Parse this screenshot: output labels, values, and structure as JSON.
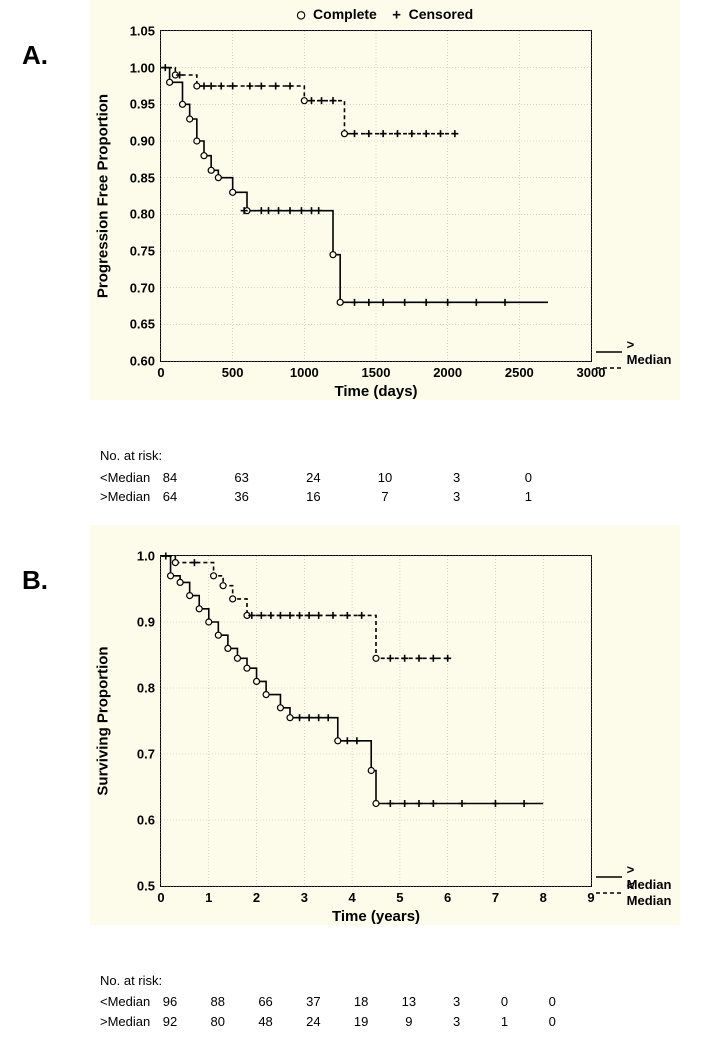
{
  "legend_markers": {
    "complete": "Complete",
    "censored": "Censored"
  },
  "panelA": {
    "label": "A.",
    "type": "kaplan-meier",
    "background_color": "#fdfceb",
    "grid_color": "#b8b8b8",
    "line_color": "#000000",
    "ylabel": "Progression Free Proportion",
    "xlabel": "Time (days)",
    "label_fontsize": 15,
    "tick_fontsize": 13,
    "xlim": [
      0,
      3000
    ],
    "xtick_step": 500,
    "ylim": [
      0.6,
      1.05
    ],
    "ytick_step": 0.05,
    "series_above": {
      "key": ">Median",
      "legend": "> Median",
      "dash": "none",
      "steps": [
        [
          0,
          1.0
        ],
        [
          60,
          0.98
        ],
        [
          150,
          0.95
        ],
        [
          200,
          0.93
        ],
        [
          250,
          0.9
        ],
        [
          300,
          0.88
        ],
        [
          350,
          0.86
        ],
        [
          400,
          0.85
        ],
        [
          500,
          0.83
        ],
        [
          600,
          0.805
        ],
        [
          1180,
          0.805
        ],
        [
          1200,
          0.745
        ],
        [
          1250,
          0.68
        ],
        [
          2700,
          0.68
        ]
      ],
      "events": [
        [
          60,
          0.98
        ],
        [
          150,
          0.95
        ],
        [
          200,
          0.93
        ],
        [
          250,
          0.9
        ],
        [
          300,
          0.88
        ],
        [
          350,
          0.86
        ],
        [
          400,
          0.85
        ],
        [
          500,
          0.83
        ],
        [
          600,
          0.805
        ],
        [
          1200,
          0.745
        ],
        [
          1250,
          0.68
        ]
      ],
      "censored": [
        [
          580,
          0.805
        ],
        [
          700,
          0.805
        ],
        [
          750,
          0.805
        ],
        [
          820,
          0.805
        ],
        [
          900,
          0.805
        ],
        [
          980,
          0.805
        ],
        [
          1050,
          0.805
        ],
        [
          1100,
          0.805
        ],
        [
          1350,
          0.68
        ],
        [
          1450,
          0.68
        ],
        [
          1550,
          0.68
        ],
        [
          1700,
          0.68
        ],
        [
          1850,
          0.68
        ],
        [
          2000,
          0.68
        ],
        [
          2200,
          0.68
        ],
        [
          2400,
          0.68
        ]
      ]
    },
    "series_below": {
      "key": "<Median",
      "legend": "<Median",
      "dash": "4,3",
      "steps": [
        [
          0,
          1.0
        ],
        [
          100,
          0.99
        ],
        [
          250,
          0.975
        ],
        [
          980,
          0.975
        ],
        [
          1000,
          0.955
        ],
        [
          1250,
          0.955
        ],
        [
          1280,
          0.91
        ],
        [
          2050,
          0.91
        ]
      ],
      "events": [
        [
          100,
          0.99
        ],
        [
          250,
          0.975
        ],
        [
          1000,
          0.955
        ],
        [
          1280,
          0.91
        ]
      ],
      "censored": [
        [
          30,
          1.0
        ],
        [
          130,
          0.99
        ],
        [
          300,
          0.975
        ],
        [
          350,
          0.975
        ],
        [
          420,
          0.975
        ],
        [
          500,
          0.975
        ],
        [
          620,
          0.975
        ],
        [
          700,
          0.975
        ],
        [
          800,
          0.975
        ],
        [
          900,
          0.975
        ],
        [
          1050,
          0.955
        ],
        [
          1120,
          0.955
        ],
        [
          1200,
          0.955
        ],
        [
          1350,
          0.91
        ],
        [
          1450,
          0.91
        ],
        [
          1550,
          0.91
        ],
        [
          1650,
          0.91
        ],
        [
          1750,
          0.91
        ],
        [
          1850,
          0.91
        ],
        [
          1950,
          0.91
        ],
        [
          2050,
          0.91
        ]
      ]
    },
    "risk": {
      "title": "No. at risk:",
      "xpoints": [
        0,
        500,
        1000,
        1500,
        2000,
        2500
      ],
      "rows": [
        {
          "label": "<Median",
          "vals": [
            "84",
            "63",
            "24",
            "10",
            "3",
            "0"
          ]
        },
        {
          "label": ">Median",
          "vals": [
            "64",
            "36",
            "16",
            "7",
            "3",
            "1"
          ]
        }
      ]
    }
  },
  "panelB": {
    "label": "B.",
    "type": "kaplan-meier",
    "background_color": "#fdfceb",
    "grid_color": "#b8b8b8",
    "line_color": "#000000",
    "ylabel": "Surviving Proportion",
    "xlabel": "Time (years)",
    "label_fontsize": 15,
    "tick_fontsize": 13,
    "xlim": [
      0,
      9
    ],
    "xtick_step": 1,
    "ylim": [
      0.5,
      1.0
    ],
    "ytick_step": 0.1,
    "series_above": {
      "key": ">Median",
      "legend": "> Median",
      "dash": "none",
      "steps": [
        [
          0,
          1.0
        ],
        [
          0.2,
          0.97
        ],
        [
          0.4,
          0.96
        ],
        [
          0.6,
          0.94
        ],
        [
          0.8,
          0.92
        ],
        [
          1.0,
          0.9
        ],
        [
          1.2,
          0.88
        ],
        [
          1.4,
          0.86
        ],
        [
          1.6,
          0.845
        ],
        [
          1.8,
          0.83
        ],
        [
          2.0,
          0.81
        ],
        [
          2.2,
          0.79
        ],
        [
          2.5,
          0.77
        ],
        [
          2.7,
          0.755
        ],
        [
          3.6,
          0.755
        ],
        [
          3.7,
          0.72
        ],
        [
          4.3,
          0.72
        ],
        [
          4.4,
          0.675
        ],
        [
          4.5,
          0.625
        ],
        [
          8.0,
          0.625
        ]
      ],
      "events": [
        [
          0.2,
          0.97
        ],
        [
          0.4,
          0.96
        ],
        [
          0.6,
          0.94
        ],
        [
          0.8,
          0.92
        ],
        [
          1.0,
          0.9
        ],
        [
          1.2,
          0.88
        ],
        [
          1.4,
          0.86
        ],
        [
          1.6,
          0.845
        ],
        [
          1.8,
          0.83
        ],
        [
          2.0,
          0.81
        ],
        [
          2.2,
          0.79
        ],
        [
          2.5,
          0.77
        ],
        [
          2.7,
          0.755
        ],
        [
          3.7,
          0.72
        ],
        [
          4.4,
          0.675
        ],
        [
          4.5,
          0.625
        ]
      ],
      "censored": [
        [
          2.9,
          0.755
        ],
        [
          3.1,
          0.755
        ],
        [
          3.3,
          0.755
        ],
        [
          3.5,
          0.755
        ],
        [
          3.9,
          0.72
        ],
        [
          4.1,
          0.72
        ],
        [
          4.8,
          0.625
        ],
        [
          5.1,
          0.625
        ],
        [
          5.4,
          0.625
        ],
        [
          5.7,
          0.625
        ],
        [
          6.3,
          0.625
        ],
        [
          7.0,
          0.625
        ],
        [
          7.6,
          0.625
        ]
      ]
    },
    "series_below": {
      "key": "<Median",
      "legend": "< Median",
      "dash": "4,3",
      "steps": [
        [
          0,
          1.0
        ],
        [
          0.3,
          0.99
        ],
        [
          1.0,
          0.99
        ],
        [
          1.1,
          0.97
        ],
        [
          1.3,
          0.955
        ],
        [
          1.5,
          0.935
        ],
        [
          1.8,
          0.91
        ],
        [
          4.4,
          0.91
        ],
        [
          4.5,
          0.845
        ],
        [
          6.0,
          0.845
        ]
      ],
      "events": [
        [
          0.3,
          0.99
        ],
        [
          1.1,
          0.97
        ],
        [
          1.3,
          0.955
        ],
        [
          1.5,
          0.935
        ],
        [
          1.8,
          0.91
        ],
        [
          4.5,
          0.845
        ]
      ],
      "censored": [
        [
          0.1,
          1.0
        ],
        [
          0.7,
          0.99
        ],
        [
          1.9,
          0.91
        ],
        [
          2.1,
          0.91
        ],
        [
          2.3,
          0.91
        ],
        [
          2.5,
          0.91
        ],
        [
          2.7,
          0.91
        ],
        [
          2.9,
          0.91
        ],
        [
          3.1,
          0.91
        ],
        [
          3.3,
          0.91
        ],
        [
          3.6,
          0.91
        ],
        [
          3.9,
          0.91
        ],
        [
          4.2,
          0.91
        ],
        [
          4.8,
          0.845
        ],
        [
          5.1,
          0.845
        ],
        [
          5.4,
          0.845
        ],
        [
          5.7,
          0.845
        ],
        [
          6.0,
          0.845
        ]
      ]
    },
    "risk": {
      "title": "No. at risk:",
      "xpoints": [
        0,
        1,
        2,
        3,
        4,
        5,
        6,
        7,
        8
      ],
      "rows": [
        {
          "label": "<Median",
          "vals": [
            "96",
            "88",
            "66",
            "37",
            "18",
            "13",
            "3",
            "0",
            "0"
          ]
        },
        {
          "label": ">Median",
          "vals": [
            "92",
            "80",
            "48",
            "24",
            "19",
            "9",
            "3",
            "1",
            "0"
          ]
        }
      ]
    }
  }
}
